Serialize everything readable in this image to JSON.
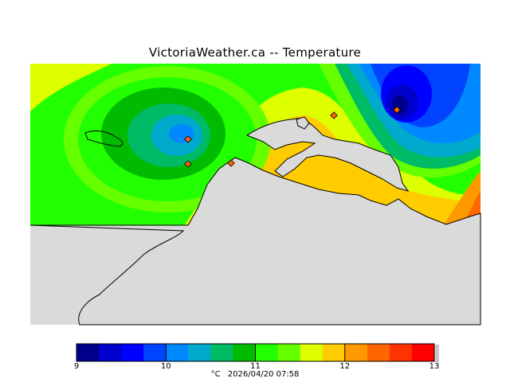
{
  "title": "VictoriaWeather.ca -- Temperature",
  "legend": {
    "unit": "°C",
    "timestamp": "2026/04/20 07:58",
    "ticks": [
      "9",
      "10",
      "11",
      "12",
      "13"
    ],
    "colors": [
      "#00008b",
      "#0000cd",
      "#0000ff",
      "#0044ff",
      "#0088ff",
      "#00aacc",
      "#00bb66",
      "#00bb00",
      "#22ff00",
      "#66ff00",
      "#ddff00",
      "#ffcc00",
      "#ff9900",
      "#ff6600",
      "#ff3300",
      "#ff0000"
    ]
  },
  "land_color": "#dadada",
  "stations": [
    "station-a",
    "station-b",
    "station-c",
    "station-d",
    "station-e"
  ]
}
